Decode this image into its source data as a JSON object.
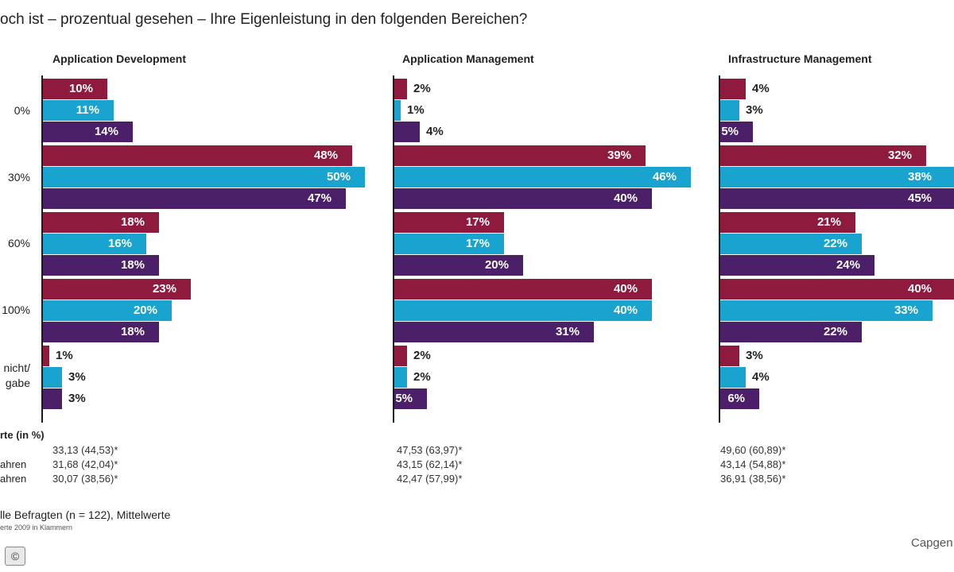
{
  "title": "och ist – prozentual gesehen – Ihre Eigenleistung in den folgenden Bereichen?",
  "chart_data": {
    "type": "bar",
    "orientation": "horizontal",
    "title": "och ist – prozentual gesehen – Ihre Eigenleistung in den folgenden Bereichen?",
    "categories": [
      "0%",
      "30%",
      "60%",
      "100%",
      "nicht/ gabe"
    ],
    "series_colors": [
      "#8e1a3e",
      "#19a3cf",
      "#4c2068"
    ],
    "panels": [
      {
        "title": "Application Development",
        "series_values": [
          [
            10,
            48,
            18,
            23,
            1
          ],
          [
            11,
            50,
            16,
            20,
            3
          ],
          [
            14,
            47,
            18,
            18,
            3
          ]
        ]
      },
      {
        "title": "Application Management",
        "series_values": [
          [
            2,
            39,
            17,
            40,
            2
          ],
          [
            1,
            46,
            17,
            40,
            2
          ],
          [
            4,
            40,
            20,
            31,
            5
          ]
        ]
      },
      {
        "title": "Infrastructure Management",
        "series_values": [
          [
            4,
            32,
            21,
            40,
            3
          ],
          [
            3,
            38,
            22,
            33,
            4
          ],
          [
            5,
            45,
            24,
            22,
            6
          ]
        ]
      }
    ],
    "value_suffix": "%",
    "xlim": [
      0,
      50
    ]
  },
  "category_labels": [
    "0%",
    "30%",
    "60%",
    "100%",
    "nicht/",
    "gabe"
  ],
  "stats": {
    "heading": "rte (in %)",
    "row_labels": [
      "",
      "ahren",
      "ahren"
    ],
    "panels": [
      [
        "33,13 (44,53)*",
        "31,68 (42,04)*",
        "30,07 (38,56)*"
      ],
      [
        "47,53 (63,97)*",
        "43,15 (62,14)*",
        "42,47 (57,99)*"
      ],
      [
        "49,60 (60,89)*",
        "43,14 (54,88)*",
        "36,91 (38,56)*"
      ]
    ]
  },
  "footnote": "lle Befragten (n = 122), Mittelwerte",
  "footnote_small": "erte 2009 in Klammern",
  "copyright": "©",
  "brand": "Capgen"
}
